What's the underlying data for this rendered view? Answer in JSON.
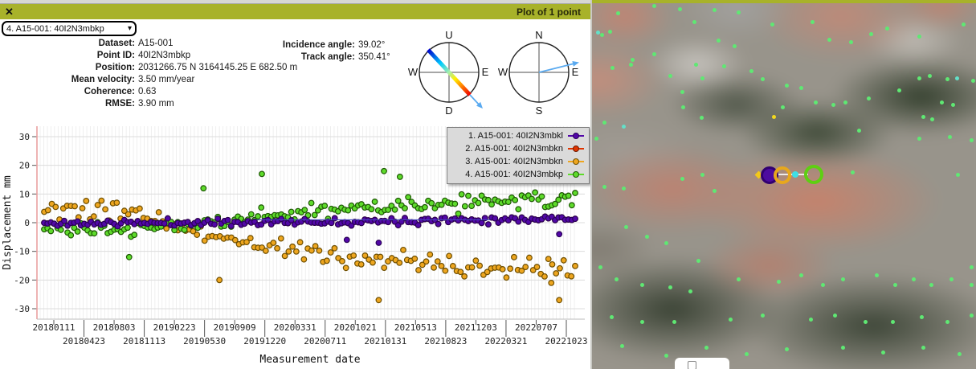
{
  "titlebar": {
    "close_glyph": "✕",
    "title": "Plot of 1 point"
  },
  "selector": {
    "value": "4. A15-001: 40I2N3mbkp",
    "chevron": "▾"
  },
  "info": {
    "rows": [
      {
        "label": "Dataset:",
        "value": "A15-001"
      },
      {
        "label": "Point ID:",
        "value": "40I2N3mbkp"
      },
      {
        "label": "Position:",
        "value": "2031266.75 N 3164145.25 E 682.50 m"
      },
      {
        "label": "Mean velocity:",
        "value": "3.50 mm/year"
      },
      {
        "label": "Coherence:",
        "value": "0.63"
      },
      {
        "label": "RMSE:",
        "value": "3.90 mm"
      }
    ],
    "angles": [
      {
        "label": "Incidence angle:",
        "value": "39.02°"
      },
      {
        "label": "Track angle:",
        "value": "350.41°"
      }
    ]
  },
  "compass_los": {
    "top": "U",
    "bottom": "D",
    "left": "W",
    "right": "E"
  },
  "compass_track": {
    "top": "N",
    "bottom": "S",
    "left": "W",
    "right": "E"
  },
  "chart_data": {
    "type": "scatter",
    "xlabel": "Measurement date",
    "ylabel": "Displacement mm",
    "ylim": [
      -35,
      35
    ],
    "yticks": [
      30,
      20,
      10,
      0,
      -10,
      -20,
      -30
    ],
    "xticks": [
      "20180111",
      "20180423",
      "20180803",
      "20181113",
      "20190223",
      "20190530",
      "20190909",
      "20191220",
      "20200331",
      "20200711",
      "20201021",
      "20210131",
      "20210513",
      "20210823",
      "20211203",
      "20220321",
      "20220707",
      "20221023"
    ],
    "x_range_dates": [
      "20180111",
      "20221023"
    ],
    "grid": {
      "vertical_lines": 150,
      "horizontal": true
    },
    "legend_position": "top-right",
    "fit_line": {
      "color": "#4444bb",
      "y": 1,
      "x0": 0.4,
      "x1": 0.84
    },
    "series": [
      {
        "name": "1. A15-001: 40I2N3mbkl",
        "color": "#5207a8",
        "edge": "#2b0357",
        "seed": 11,
        "n": 160,
        "sigma": 1.1,
        "trend": [
          [
            0,
            -0.3
          ],
          [
            0.5,
            0.3
          ],
          [
            1,
            1.6
          ]
        ],
        "extras": [
          [
            0.57,
            -6
          ],
          [
            0.63,
            -7
          ],
          [
            0.97,
            -4
          ]
        ]
      },
      {
        "name": "2. A15-001: 40I2N3mbkn",
        "color": "#df3400",
        "edge": "#6e1900",
        "seed": 11,
        "n": 160,
        "sigma": 1.1,
        "trend": [
          [
            0,
            -0.3
          ],
          [
            0.5,
            0.3
          ],
          [
            1,
            1.6
          ]
        ],
        "extras": []
      },
      {
        "name": "3. A15-001: 40I2N3mbkn",
        "color": "#eea61f",
        "edge": "#6e4e00",
        "seed": 33,
        "n": 140,
        "sigma": 3.1,
        "trend": [
          [
            0,
            4
          ],
          [
            0.17,
            3.5
          ],
          [
            0.3,
            -4
          ],
          [
            0.5,
            -11
          ],
          [
            0.62,
            -13
          ],
          [
            0.8,
            -16.5
          ],
          [
            1,
            -16
          ]
        ],
        "extras": [
          [
            0.33,
            -20
          ],
          [
            0.63,
            -27
          ],
          [
            0.955,
            -21
          ],
          [
            0.97,
            -27
          ]
        ]
      },
      {
        "name": "4. A15-001: 40I2N3mbkp",
        "color": "#5edb2b",
        "edge": "#1d5703",
        "seed": 44,
        "n": 160,
        "sigma": 2.7,
        "trend": [
          [
            0,
            -2
          ],
          [
            0.15,
            -2.5
          ],
          [
            0.35,
            0.5
          ],
          [
            0.55,
            4.5
          ],
          [
            0.75,
            7
          ],
          [
            1,
            9
          ]
        ],
        "extras": [
          [
            0.16,
            -12
          ],
          [
            0.3,
            12
          ],
          [
            0.41,
            17
          ],
          [
            0.64,
            18
          ],
          [
            0.67,
            16
          ]
        ]
      }
    ]
  },
  "map": {
    "dot_colors": {
      "green": "#5fe873",
      "cyan": "#63e0c9",
      "yellow": "#f2d81e"
    },
    "dots": [
      [
        75,
        5,
        0
      ],
      [
        107,
        9,
        0
      ],
      [
        150,
        10,
        0
      ],
      [
        180,
        13,
        0
      ],
      [
        30,
        14,
        0
      ],
      [
        125,
        25,
        0
      ],
      [
        222,
        28,
        0
      ],
      [
        272,
        25,
        0
      ],
      [
        293,
        47,
        0
      ],
      [
        320,
        50,
        0
      ],
      [
        345,
        40,
        0
      ],
      [
        365,
        33,
        0
      ],
      [
        405,
        43,
        0
      ],
      [
        460,
        28,
        0
      ],
      [
        5,
        38,
        1
      ],
      [
        10,
        41,
        0
      ],
      [
        20,
        37,
        0
      ],
      [
        155,
        48,
        0
      ],
      [
        175,
        55,
        0
      ],
      [
        75,
        65,
        0
      ],
      [
        48,
        72,
        0
      ],
      [
        46,
        78,
        0
      ],
      [
        23,
        82,
        0
      ],
      [
        127,
        78,
        0
      ],
      [
        162,
        80,
        0
      ],
      [
        196,
        86,
        0
      ],
      [
        95,
        92,
        0
      ],
      [
        135,
        95,
        0
      ],
      [
        210,
        96,
        0
      ],
      [
        240,
        104,
        0
      ],
      [
        258,
        107,
        0
      ],
      [
        380,
        110,
        0
      ],
      [
        110,
        112,
        0
      ],
      [
        405,
        95,
        0
      ],
      [
        418,
        92,
        0
      ],
      [
        440,
        96,
        0
      ],
      [
        452,
        95,
        1
      ],
      [
        472,
        98,
        0
      ],
      [
        111,
        131,
        0
      ],
      [
        235,
        131,
        0
      ],
      [
        276,
        125,
        0
      ],
      [
        298,
        128,
        0
      ],
      [
        313,
        125,
        0
      ],
      [
        342,
        120,
        0
      ],
      [
        433,
        125,
        0
      ],
      [
        447,
        128,
        0
      ],
      [
        134,
        144,
        0
      ],
      [
        13,
        150,
        0
      ],
      [
        37,
        155,
        1
      ],
      [
        410,
        143,
        0
      ],
      [
        421,
        146,
        0
      ],
      [
        224,
        143,
        2
      ],
      [
        330,
        160,
        0
      ],
      [
        3,
        170,
        0
      ],
      [
        405,
        170,
        0
      ],
      [
        443,
        168,
        0
      ],
      [
        470,
        172,
        0
      ],
      [
        110,
        220,
        0
      ],
      [
        135,
        215,
        0
      ],
      [
        13,
        230,
        0
      ],
      [
        37,
        232,
        0
      ],
      [
        150,
        235,
        0
      ],
      [
        322,
        212,
        0
      ],
      [
        453,
        215,
        0
      ],
      [
        40,
        280,
        0
      ],
      [
        66,
        292,
        0
      ],
      [
        90,
        300,
        0
      ],
      [
        8,
        330,
        0
      ],
      [
        130,
        322,
        0
      ],
      [
        28,
        345,
        0
      ],
      [
        180,
        345,
        0
      ],
      [
        230,
        348,
        0
      ],
      [
        258,
        340,
        0
      ],
      [
        310,
        345,
        0
      ],
      [
        352,
        340,
        0
      ],
      [
        398,
        345,
        0
      ],
      [
        445,
        345,
        0
      ],
      [
        470,
        330,
        0
      ],
      [
        60,
        352,
        0
      ],
      [
        95,
        355,
        0
      ],
      [
        285,
        352,
        0
      ],
      [
        375,
        352,
        0
      ],
      [
        420,
        352,
        0
      ],
      [
        120,
        360,
        0
      ],
      [
        470,
        352,
        0
      ],
      [
        22,
        392,
        0
      ],
      [
        60,
        398,
        0
      ],
      [
        100,
        398,
        0
      ],
      [
        170,
        395,
        0
      ],
      [
        210,
        390,
        0
      ],
      [
        270,
        395,
        0
      ],
      [
        300,
        390,
        0
      ],
      [
        338,
        398,
        0
      ],
      [
        372,
        398,
        0
      ],
      [
        408,
        392,
        0
      ],
      [
        440,
        398,
        0
      ],
      [
        470,
        390,
        0
      ],
      [
        140,
        430,
        0
      ],
      [
        190,
        438,
        0
      ],
      [
        240,
        432,
        0
      ],
      [
        90,
        440,
        0
      ],
      [
        35,
        428,
        0
      ],
      [
        310,
        430,
        0
      ],
      [
        360,
        436,
        0
      ],
      [
        410,
        430,
        0
      ],
      [
        455,
        438,
        0
      ]
    ]
  },
  "footer_checkbox": {
    "checked": false
  }
}
